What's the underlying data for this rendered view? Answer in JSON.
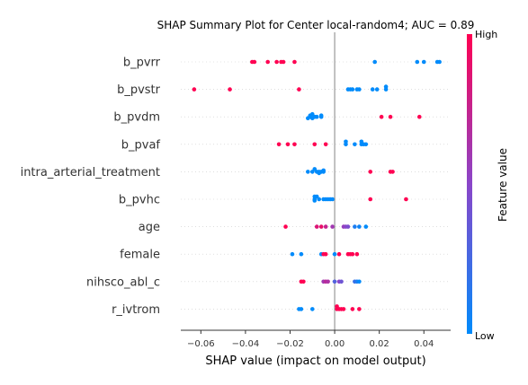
{
  "chart_data": {
    "type": "scatter",
    "subtype": "shap-beeswarm",
    "title": "SHAP Summary Plot for Center local-random4; AUC = 0.89",
    "xlabel": "SHAP value (impact on model output)",
    "ylabel": "",
    "xlim": [
      -0.069,
      0.052
    ],
    "xticks": [
      -0.06,
      -0.04,
      -0.02,
      0.0,
      0.02,
      0.04
    ],
    "xtick_labels": [
      "−0.06",
      "−0.04",
      "−0.02",
      "0.00",
      "0.02",
      "0.04"
    ],
    "grid": false,
    "colorbar": {
      "title": "Feature value",
      "high_label": "High",
      "low_label": "Low",
      "high_color": "#ff0052",
      "low_color": "#008bfb"
    },
    "features": [
      {
        "name": "b_pvrr",
        "points": [
          {
            "x": -0.037,
            "y": 0.0,
            "c": 1
          },
          {
            "x": -0.036,
            "y": 0.0,
            "c": 1
          },
          {
            "x": -0.03,
            "y": 0.0,
            "c": 1
          },
          {
            "x": -0.026,
            "y": 0.0,
            "c": 1
          },
          {
            "x": -0.024,
            "y": 0.0,
            "c": 1
          },
          {
            "x": -0.023,
            "y": 0.0,
            "c": 1
          },
          {
            "x": -0.018,
            "y": 0.0,
            "c": 1
          },
          {
            "x": 0.018,
            "y": 0.0,
            "c": 0
          },
          {
            "x": 0.037,
            "y": 0.0,
            "c": 0
          },
          {
            "x": 0.04,
            "y": 0.0,
            "c": 0
          },
          {
            "x": 0.046,
            "y": 0.0,
            "c": 0
          },
          {
            "x": 0.047,
            "y": 0.0,
            "c": 0
          }
        ]
      },
      {
        "name": "b_pvstr",
        "points": [
          {
            "x": -0.063,
            "y": 0.0,
            "c": 1
          },
          {
            "x": -0.047,
            "y": 0.0,
            "c": 1
          },
          {
            "x": -0.016,
            "y": 0.0,
            "c": 1
          },
          {
            "x": 0.006,
            "y": 0.0,
            "c": 0
          },
          {
            "x": 0.007,
            "y": 0.0,
            "c": 0
          },
          {
            "x": 0.008,
            "y": 0.0,
            "c": 0
          },
          {
            "x": 0.01,
            "y": 0.0,
            "c": 0
          },
          {
            "x": 0.011,
            "y": 0.0,
            "c": 0
          },
          {
            "x": 0.017,
            "y": 0.0,
            "c": 0
          },
          {
            "x": 0.019,
            "y": 0.0,
            "c": 0
          },
          {
            "x": 0.023,
            "y": 0.0,
            "c": 0
          },
          {
            "x": 0.023,
            "y": 2.0,
            "c": 0
          }
        ]
      },
      {
        "name": "b_pvdm",
        "points": [
          {
            "x": -0.012,
            "y": -1.0,
            "c": 0
          },
          {
            "x": -0.011,
            "y": 0.0,
            "c": 0
          },
          {
            "x": -0.01,
            "y": -1.0,
            "c": 0
          },
          {
            "x": -0.009,
            "y": 0.0,
            "c": 0
          },
          {
            "x": -0.008,
            "y": 0.0,
            "c": 0
          },
          {
            "x": -0.006,
            "y": 0.0,
            "c": 0
          },
          {
            "x": -0.011,
            "y": 1.0,
            "c": 0
          },
          {
            "x": -0.01,
            "y": 2.0,
            "c": 0
          },
          {
            "x": -0.006,
            "y": 1.0,
            "c": 0
          },
          {
            "x": 0.021,
            "y": 0.0,
            "c": 1
          },
          {
            "x": 0.025,
            "y": 0.0,
            "c": 1
          },
          {
            "x": 0.038,
            "y": 0.0,
            "c": 1
          }
        ]
      },
      {
        "name": "b_pvaf",
        "points": [
          {
            "x": -0.025,
            "y": 0.0,
            "c": 1
          },
          {
            "x": -0.021,
            "y": 0.0,
            "c": 1
          },
          {
            "x": -0.018,
            "y": 0.0,
            "c": 1
          },
          {
            "x": -0.009,
            "y": 0.0,
            "c": 1
          },
          {
            "x": -0.004,
            "y": 0.0,
            "c": 1
          },
          {
            "x": 0.005,
            "y": 0.0,
            "c": 0
          },
          {
            "x": 0.009,
            "y": 0.0,
            "c": 0
          },
          {
            "x": 0.012,
            "y": 0.0,
            "c": 0
          },
          {
            "x": 0.014,
            "y": 0.0,
            "c": 0
          },
          {
            "x": 0.005,
            "y": 2.0,
            "c": 0
          },
          {
            "x": 0.012,
            "y": 2.0,
            "c": 0
          },
          {
            "x": 0.013,
            "y": 0.0,
            "c": 0
          }
        ]
      },
      {
        "name": "intra_arterial_treatment",
        "points": [
          {
            "x": -0.012,
            "y": 0.0,
            "c": 0
          },
          {
            "x": -0.01,
            "y": 0.0,
            "c": 0
          },
          {
            "x": -0.008,
            "y": 0.0,
            "c": 0
          },
          {
            "x": -0.007,
            "y": 0.0,
            "c": 0
          },
          {
            "x": -0.006,
            "y": 0.0,
            "c": 0
          },
          {
            "x": -0.005,
            "y": 0.0,
            "c": 0
          },
          {
            "x": -0.009,
            "y": 2.0,
            "c": 0
          },
          {
            "x": -0.007,
            "y": -1.0,
            "c": 0
          },
          {
            "x": -0.005,
            "y": 1.0,
            "c": 0
          },
          {
            "x": 0.016,
            "y": 0.0,
            "c": 1
          },
          {
            "x": 0.025,
            "y": 0.0,
            "c": 1
          },
          {
            "x": 0.026,
            "y": 0.0,
            "c": 1
          }
        ]
      },
      {
        "name": "b_pvhc",
        "points": [
          {
            "x": -0.009,
            "y": 2.0,
            "c": 0
          },
          {
            "x": -0.008,
            "y": 2.0,
            "c": 0
          },
          {
            "x": -0.009,
            "y": 0.0,
            "c": 0
          },
          {
            "x": -0.007,
            "y": 0.0,
            "c": 0
          },
          {
            "x": -0.005,
            "y": 0.0,
            "c": 0
          },
          {
            "x": -0.004,
            "y": 0.0,
            "c": 0
          },
          {
            "x": -0.003,
            "y": 0.0,
            "c": 0
          },
          {
            "x": -0.002,
            "y": 0.0,
            "c": 0
          },
          {
            "x": -0.001,
            "y": 0.0,
            "c": 0
          },
          {
            "x": -0.009,
            "y": -1.0,
            "c": 0
          },
          {
            "x": 0.016,
            "y": 0.0,
            "c": 1
          },
          {
            "x": 0.032,
            "y": 0.0,
            "c": 1
          }
        ]
      },
      {
        "name": "age",
        "points": [
          {
            "x": -0.022,
            "y": 0.0,
            "c": 1
          },
          {
            "x": -0.008,
            "y": 0.0,
            "c": 0.85
          },
          {
            "x": -0.006,
            "y": 0.0,
            "c": 0.9
          },
          {
            "x": -0.004,
            "y": 0.0,
            "c": 0.75
          },
          {
            "x": -0.001,
            "y": 0.0,
            "c": 0.6
          },
          {
            "x": 0.004,
            "y": 0.0,
            "c": 0.55
          },
          {
            "x": 0.005,
            "y": 0.0,
            "c": 0.5
          },
          {
            "x": 0.006,
            "y": 0.0,
            "c": 0.45
          },
          {
            "x": 0.009,
            "y": 0.0,
            "c": 0.1
          },
          {
            "x": 0.011,
            "y": 0.0,
            "c": 0.05
          },
          {
            "x": 0.014,
            "y": 0.0,
            "c": 0.0
          }
        ]
      },
      {
        "name": "female",
        "points": [
          {
            "x": -0.019,
            "y": 0.0,
            "c": 0
          },
          {
            "x": -0.015,
            "y": 0.0,
            "c": 0
          },
          {
            "x": -0.006,
            "y": 0.0,
            "c": 0
          },
          {
            "x": -0.005,
            "y": 0.0,
            "c": 1
          },
          {
            "x": -0.004,
            "y": 0.0,
            "c": 1
          },
          {
            "x": 0.0,
            "y": 0.0,
            "c": 0
          },
          {
            "x": 0.002,
            "y": 0.0,
            "c": 1
          },
          {
            "x": 0.006,
            "y": 0.0,
            "c": 1
          },
          {
            "x": 0.007,
            "y": 0.0,
            "c": 1
          },
          {
            "x": 0.008,
            "y": 0.0,
            "c": 1
          },
          {
            "x": 0.01,
            "y": 0.0,
            "c": 1
          }
        ]
      },
      {
        "name": "nihsco_abl_c",
        "points": [
          {
            "x": -0.015,
            "y": 0.0,
            "c": 1
          },
          {
            "x": -0.014,
            "y": 0.0,
            "c": 1
          },
          {
            "x": -0.005,
            "y": 0.0,
            "c": 0.6
          },
          {
            "x": -0.004,
            "y": 0.0,
            "c": 0.7
          },
          {
            "x": -0.003,
            "y": 0.0,
            "c": 0.65
          },
          {
            "x": 0.0,
            "y": 0.0,
            "c": 0.3
          },
          {
            "x": 0.002,
            "y": 0.0,
            "c": 0.5
          },
          {
            "x": 0.003,
            "y": 0.0,
            "c": 0.4
          },
          {
            "x": 0.009,
            "y": 0.0,
            "c": 0.2
          },
          {
            "x": 0.01,
            "y": 0.0,
            "c": 0.1
          },
          {
            "x": 0.011,
            "y": 0.0,
            "c": 0.0
          }
        ]
      },
      {
        "name": "r_ivtrom",
        "points": [
          {
            "x": -0.016,
            "y": 0.0,
            "c": 0
          },
          {
            "x": -0.015,
            "y": 0.0,
            "c": 0
          },
          {
            "x": -0.01,
            "y": 0.0,
            "c": 0
          },
          {
            "x": 0.001,
            "y": 2.0,
            "c": 1
          },
          {
            "x": 0.001,
            "y": 0.0,
            "c": 1
          },
          {
            "x": 0.002,
            "y": 0.0,
            "c": 1
          },
          {
            "x": 0.003,
            "y": 0.0,
            "c": 1
          },
          {
            "x": 0.004,
            "y": 0.0,
            "c": 1
          },
          {
            "x": 0.008,
            "y": 0.0,
            "c": 1
          },
          {
            "x": 0.011,
            "y": 0.0,
            "c": 1
          }
        ]
      }
    ]
  }
}
